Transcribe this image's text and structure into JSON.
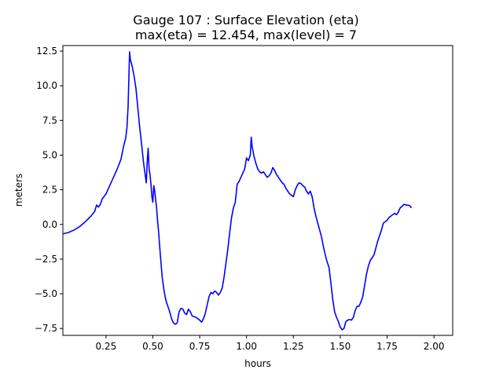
{
  "chart_data": {
    "type": "line",
    "title": "Gauge 107 : Surface Elevation (eta)",
    "subtitle": "max(eta) =  12.454,    max(level) = 7",
    "xlabel": "hours",
    "ylabel": "meters",
    "xlim": [
      0.02,
      2.1
    ],
    "ylim": [
      -8.0,
      12.9
    ],
    "xticks": [
      0.25,
      0.5,
      0.75,
      1.0,
      1.25,
      1.5,
      1.75,
      2.0
    ],
    "xtick_labels": [
      "0.25",
      "0.50",
      "0.75",
      "1.00",
      "1.25",
      "1.50",
      "1.75",
      "2.00"
    ],
    "yticks": [
      -7.5,
      -5.0,
      -2.5,
      0.0,
      2.5,
      5.0,
      7.5,
      10.0,
      12.5
    ],
    "ytick_labels": [
      "−7.5",
      "−5.0",
      "−2.5",
      "0.0",
      "2.5",
      "5.0",
      "7.5",
      "10.0",
      "12.5"
    ],
    "grid": false,
    "series": [
      {
        "color": "#0000ff",
        "points": [
          [
            0.02,
            -0.68
          ],
          [
            0.05,
            -0.58
          ],
          [
            0.08,
            -0.4
          ],
          [
            0.11,
            -0.15
          ],
          [
            0.14,
            0.2
          ],
          [
            0.17,
            0.6
          ],
          [
            0.19,
            0.95
          ],
          [
            0.2,
            1.4
          ],
          [
            0.21,
            1.25
          ],
          [
            0.22,
            1.45
          ],
          [
            0.23,
            1.85
          ],
          [
            0.25,
            2.2
          ],
          [
            0.27,
            2.8
          ],
          [
            0.29,
            3.4
          ],
          [
            0.31,
            4.0
          ],
          [
            0.33,
            4.7
          ],
          [
            0.345,
            5.7
          ],
          [
            0.355,
            6.2
          ],
          [
            0.362,
            7.0
          ],
          [
            0.368,
            8.5
          ],
          [
            0.372,
            10.5
          ],
          [
            0.376,
            12.45
          ],
          [
            0.38,
            11.9
          ],
          [
            0.39,
            11.4
          ],
          [
            0.4,
            10.7
          ],
          [
            0.41,
            9.8
          ],
          [
            0.42,
            8.4
          ],
          [
            0.43,
            7.0
          ],
          [
            0.44,
            5.8
          ],
          [
            0.45,
            4.5
          ],
          [
            0.46,
            3.5
          ],
          [
            0.465,
            3.0
          ],
          [
            0.47,
            4.5
          ],
          [
            0.475,
            5.5
          ],
          [
            0.48,
            4.0
          ],
          [
            0.485,
            3.6
          ],
          [
            0.49,
            2.9
          ],
          [
            0.495,
            2.0
          ],
          [
            0.5,
            1.6
          ],
          [
            0.505,
            2.8
          ],
          [
            0.51,
            2.4
          ],
          [
            0.515,
            1.8
          ],
          [
            0.52,
            1.2
          ],
          [
            0.525,
            0.3
          ],
          [
            0.53,
            -0.4
          ],
          [
            0.54,
            -2.2
          ],
          [
            0.55,
            -3.8
          ],
          [
            0.56,
            -4.8
          ],
          [
            0.57,
            -5.5
          ],
          [
            0.58,
            -5.9
          ],
          [
            0.59,
            -6.3
          ],
          [
            0.6,
            -6.8
          ],
          [
            0.61,
            -7.1
          ],
          [
            0.62,
            -7.2
          ],
          [
            0.63,
            -7.1
          ],
          [
            0.64,
            -6.3
          ],
          [
            0.65,
            -6.05
          ],
          [
            0.66,
            -6.1
          ],
          [
            0.67,
            -6.4
          ],
          [
            0.68,
            -6.5
          ],
          [
            0.69,
            -6.1
          ],
          [
            0.7,
            -6.3
          ],
          [
            0.71,
            -6.6
          ],
          [
            0.73,
            -6.7
          ],
          [
            0.75,
            -6.9
          ],
          [
            0.76,
            -7.05
          ],
          [
            0.77,
            -6.8
          ],
          [
            0.78,
            -6.4
          ],
          [
            0.79,
            -5.8
          ],
          [
            0.8,
            -5.2
          ],
          [
            0.81,
            -4.9
          ],
          [
            0.82,
            -5.0
          ],
          [
            0.83,
            -4.8
          ],
          [
            0.84,
            -4.9
          ],
          [
            0.85,
            -5.1
          ],
          [
            0.86,
            -4.9
          ],
          [
            0.87,
            -4.6
          ],
          [
            0.88,
            -3.8
          ],
          [
            0.89,
            -2.8
          ],
          [
            0.9,
            -1.8
          ],
          [
            0.91,
            -0.6
          ],
          [
            0.92,
            0.5
          ],
          [
            0.93,
            1.2
          ],
          [
            0.94,
            1.6
          ],
          [
            0.95,
            2.9
          ],
          [
            0.96,
            3.1
          ],
          [
            0.97,
            3.4
          ],
          [
            0.98,
            3.7
          ],
          [
            0.99,
            4.0
          ],
          [
            1.0,
            4.8
          ],
          [
            1.01,
            4.6
          ],
          [
            1.02,
            5.0
          ],
          [
            1.025,
            6.3
          ],
          [
            1.03,
            5.6
          ],
          [
            1.04,
            4.9
          ],
          [
            1.05,
            4.4
          ],
          [
            1.06,
            4.0
          ],
          [
            1.07,
            3.8
          ],
          [
            1.08,
            3.7
          ],
          [
            1.09,
            3.8
          ],
          [
            1.1,
            3.6
          ],
          [
            1.11,
            3.4
          ],
          [
            1.12,
            3.5
          ],
          [
            1.13,
            3.7
          ],
          [
            1.14,
            4.1
          ],
          [
            1.15,
            3.9
          ],
          [
            1.16,
            3.6
          ],
          [
            1.17,
            3.4
          ],
          [
            1.18,
            3.2
          ],
          [
            1.19,
            3.0
          ],
          [
            1.2,
            2.9
          ],
          [
            1.21,
            2.6
          ],
          [
            1.22,
            2.4
          ],
          [
            1.23,
            2.2
          ],
          [
            1.24,
            2.1
          ],
          [
            1.25,
            2.0
          ],
          [
            1.26,
            2.5
          ],
          [
            1.27,
            2.8
          ],
          [
            1.28,
            3.0
          ],
          [
            1.29,
            2.95
          ],
          [
            1.3,
            2.8
          ],
          [
            1.31,
            2.7
          ],
          [
            1.32,
            2.4
          ],
          [
            1.33,
            2.2
          ],
          [
            1.34,
            2.4
          ],
          [
            1.35,
            2.0
          ],
          [
            1.36,
            1.2
          ],
          [
            1.37,
            0.6
          ],
          [
            1.38,
            0.1
          ],
          [
            1.39,
            -0.4
          ],
          [
            1.4,
            -0.9
          ],
          [
            1.41,
            -1.6
          ],
          [
            1.42,
            -2.2
          ],
          [
            1.43,
            -2.7
          ],
          [
            1.44,
            -3.1
          ],
          [
            1.45,
            -4.2
          ],
          [
            1.46,
            -5.4
          ],
          [
            1.47,
            -6.3
          ],
          [
            1.48,
            -6.7
          ],
          [
            1.49,
            -7.0
          ],
          [
            1.5,
            -7.4
          ],
          [
            1.51,
            -7.6
          ],
          [
            1.52,
            -7.5
          ],
          [
            1.53,
            -7.0
          ],
          [
            1.54,
            -6.9
          ],
          [
            1.55,
            -6.85
          ],
          [
            1.56,
            -6.9
          ],
          [
            1.57,
            -6.7
          ],
          [
            1.58,
            -6.2
          ],
          [
            1.59,
            -5.9
          ],
          [
            1.6,
            -5.9
          ],
          [
            1.61,
            -5.6
          ],
          [
            1.62,
            -5.2
          ],
          [
            1.63,
            -4.4
          ],
          [
            1.64,
            -3.6
          ],
          [
            1.65,
            -3.0
          ],
          [
            1.66,
            -2.6
          ],
          [
            1.67,
            -2.4
          ],
          [
            1.68,
            -2.2
          ],
          [
            1.69,
            -1.7
          ],
          [
            1.7,
            -1.2
          ],
          [
            1.71,
            -0.8
          ],
          [
            1.72,
            -0.4
          ],
          [
            1.73,
            0.1
          ],
          [
            1.74,
            0.2
          ],
          [
            1.75,
            0.3
          ],
          [
            1.76,
            0.5
          ],
          [
            1.77,
            0.6
          ],
          [
            1.78,
            0.7
          ],
          [
            1.79,
            0.8
          ],
          [
            1.8,
            0.7
          ],
          [
            1.81,
            0.9
          ],
          [
            1.82,
            1.2
          ],
          [
            1.83,
            1.3
          ],
          [
            1.84,
            1.45
          ],
          [
            1.85,
            1.4
          ],
          [
            1.86,
            1.4
          ],
          [
            1.87,
            1.35
          ],
          [
            1.88,
            1.2
          ]
        ]
      }
    ]
  }
}
